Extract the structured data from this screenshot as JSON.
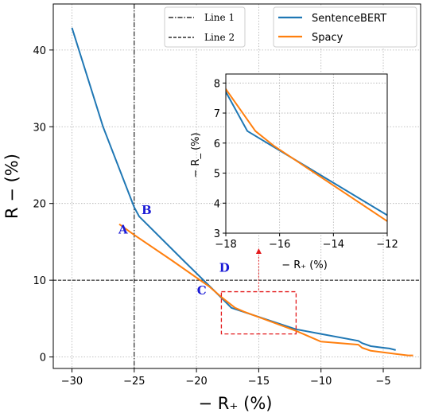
{
  "chart_data": {
    "type": "line",
    "xlabel": "− R₊ (%)",
    "ylabel": "R − (%)",
    "xlim": [
      -31.5,
      -2
    ],
    "ylim": [
      -1.5,
      46
    ],
    "xticks": [
      -30,
      -25,
      -20,
      -15,
      -10,
      -5
    ],
    "yticks": [
      0,
      10,
      20,
      30,
      40
    ],
    "grid": true,
    "legend_position": "top-right",
    "series": [
      {
        "name": "SentenceBERT",
        "color": "#1f77b4",
        "x": [
          -30.0,
          -27.5,
          -25.0,
          -24.6,
          -21.0,
          -18.3,
          -17.2,
          -12.0,
          -10.0,
          -7.0,
          -6.7,
          -6.0,
          -5.5,
          -5.0,
          -4.5,
          -4.0
        ],
        "y": [
          42.9,
          30.0,
          19.5,
          18.3,
          12.5,
          8.2,
          6.4,
          3.6,
          3.0,
          2.1,
          1.8,
          1.4,
          1.3,
          1.2,
          1.1,
          0.9
        ]
      },
      {
        "name": "Spacy",
        "color": "#ff7f0e",
        "x": [
          -26.2,
          -25.0,
          -22.0,
          -19.0,
          -18.0,
          -16.9,
          -16.2,
          -12.0,
          -10.0,
          -7.0,
          -6.7,
          -6.0,
          -5.0,
          -4.0,
          -3.0,
          -2.6
        ],
        "y": [
          17.3,
          15.9,
          12.6,
          9.2,
          7.8,
          6.4,
          5.9,
          3.4,
          2.0,
          1.6,
          1.2,
          0.8,
          0.6,
          0.4,
          0.2,
          0.2
        ]
      }
    ],
    "reference_lines": [
      {
        "name": "Line 1",
        "orientation": "vertical",
        "x": -25,
        "style": "dashdot"
      },
      {
        "name": "Line 2",
        "orientation": "horizontal",
        "y": 10,
        "style": "dashed"
      }
    ],
    "points": [
      {
        "label": "A",
        "x": -25.5,
        "y": 16.9
      },
      {
        "label": "B",
        "x": -24.6,
        "y": 18.3
      },
      {
        "label": "C",
        "x": -19.0,
        "y": 9.2
      },
      {
        "label": "D",
        "x": -18.3,
        "y": 10.5
      }
    ],
    "zoom_box": {
      "x": [
        -18,
        -12
      ],
      "y": [
        3,
        8.5
      ],
      "color": "#e31a1c"
    },
    "inset": {
      "xlabel": "− R₊ (%)",
      "ylabel": "− R_ (%)",
      "xlim": [
        -18,
        -12
      ],
      "ylim": [
        3,
        8.3
      ],
      "xticks": [
        -18,
        -16,
        -14,
        -12
      ],
      "yticks": [
        3,
        4,
        5,
        6,
        7,
        8
      ],
      "grid": true
    }
  }
}
